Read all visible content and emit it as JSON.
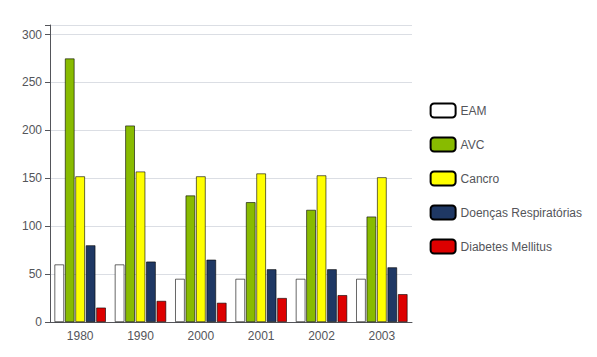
{
  "chart_data": {
    "type": "bar",
    "categories": [
      "1980",
      "1990",
      "2000",
      "2001",
      "2002",
      "2003"
    ],
    "series": [
      {
        "name": "EAM",
        "color": "#FFFFFF",
        "values": [
          60,
          60,
          45,
          45,
          45,
          45
        ]
      },
      {
        "name": "AVC",
        "color": "#88BB00",
        "values": [
          275,
          205,
          132,
          125,
          117,
          110
        ]
      },
      {
        "name": "Cancro",
        "color": "#FFFF00",
        "values": [
          152,
          157,
          152,
          155,
          153,
          151
        ]
      },
      {
        "name": "Doenças Respiratórias",
        "color": "#1F3864",
        "values": [
          80,
          63,
          65,
          55,
          55,
          57
        ]
      },
      {
        "name": "Diabetes Mellitus",
        "color": "#DD0000",
        "values": [
          15,
          22,
          20,
          25,
          28,
          29
        ]
      }
    ],
    "ylim": [
      0,
      310
    ],
    "yticks": [
      0,
      50,
      100,
      150,
      200,
      250,
      300
    ],
    "grid": true,
    "legend": "right"
  }
}
